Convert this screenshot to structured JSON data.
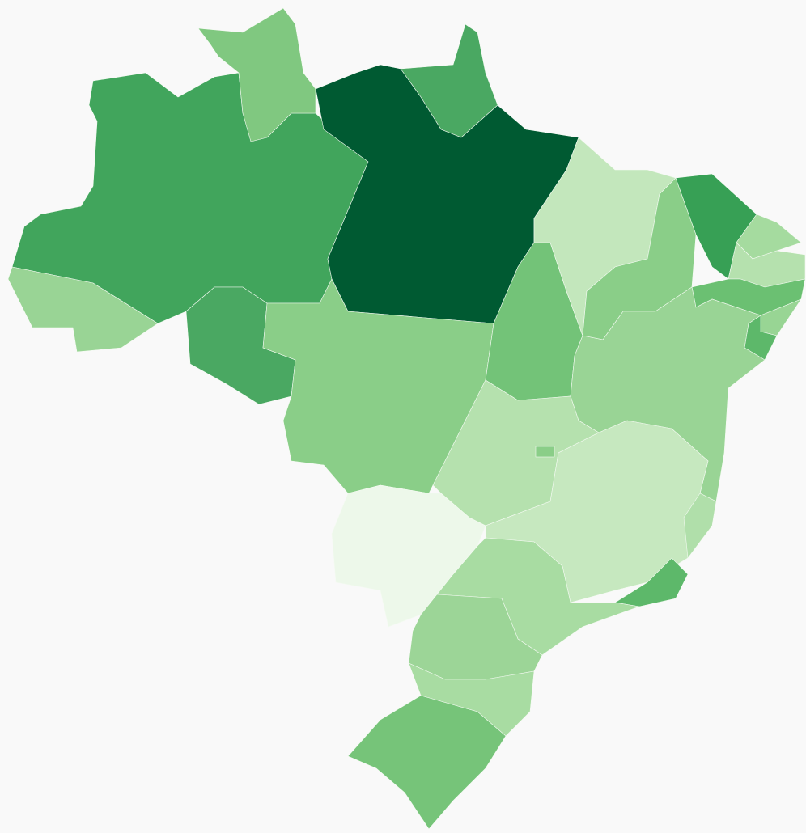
{
  "map": {
    "regions": [
      {
        "color": "#41a55c"
      },
      {
        "color": "#80c880"
      },
      {
        "color": "#4aa862"
      },
      {
        "color": "#005a32"
      },
      {
        "color": "#99d495"
      },
      {
        "color": "#4aa862"
      },
      {
        "color": "#8ace88"
      },
      {
        "color": "#73c378"
      },
      {
        "color": "#c3e7bc"
      },
      {
        "color": "#8ace88"
      },
      {
        "color": "#37a055"
      },
      {
        "color": "#a5db9f"
      },
      {
        "color": "#b5e1ae"
      },
      {
        "color": "#6bc072"
      },
      {
        "color": "#98d594"
      },
      {
        "color": "#5db86a"
      },
      {
        "color": "#99d495"
      },
      {
        "color": "#b5e1ae"
      },
      {
        "color": "#8ace88"
      },
      {
        "color": "#c6e8bf"
      },
      {
        "color": "#b0dfaa"
      },
      {
        "color": "#5db86a"
      },
      {
        "color": "#edf8ea"
      },
      {
        "color": "#a8dca2"
      },
      {
        "color": "#9cd597"
      },
      {
        "color": "#a8dca2"
      },
      {
        "color": "#76c479"
      }
    ]
  }
}
